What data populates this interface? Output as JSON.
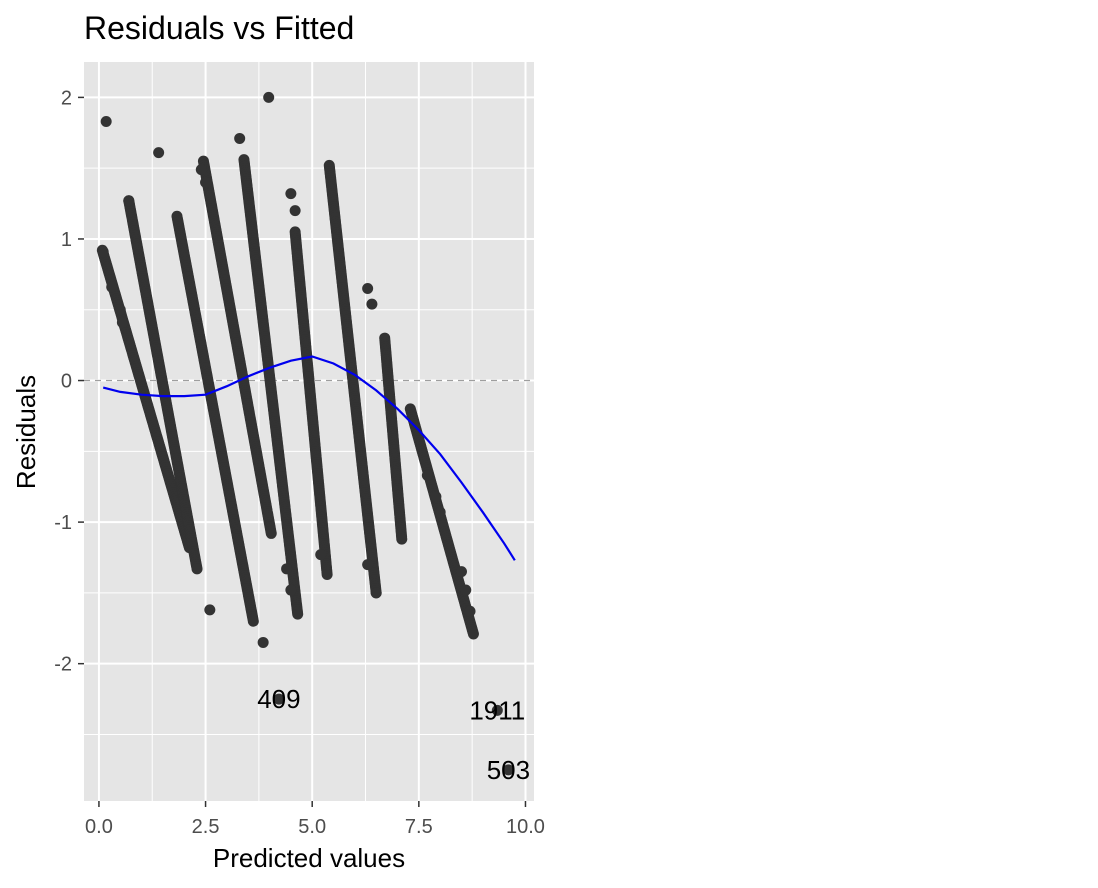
{
  "chart_data": {
    "type": "scatter",
    "title": "Residuals vs Fitted",
    "xlabel": "Predicted values",
    "ylabel": "Residuals",
    "xlim": [
      -0.35,
      10.2
    ],
    "ylim": [
      -2.97,
      2.25
    ],
    "x_ticks": [
      0,
      2.5,
      5,
      7.5,
      10
    ],
    "x_tick_labels": [
      "0.0",
      "2.5",
      "5.0",
      "7.5",
      "10.0"
    ],
    "y_ticks": [
      -2,
      -1,
      0,
      1,
      2
    ],
    "y_tick_labels": [
      "-2",
      "-1",
      "0",
      "1",
      "2"
    ],
    "grid": true,
    "reference_line": {
      "y": 0,
      "style": "dashed",
      "color": "#9e9e9e"
    },
    "colors": {
      "panel": "#e5e5e5",
      "grid": "#ffffff",
      "points": "#333333",
      "smooth": "#0000ee"
    },
    "bands": [
      {
        "x_start": 0.08,
        "y_start": 0.92,
        "x_end": 2.12,
        "y_end": -1.18
      },
      {
        "x_start": 0.7,
        "y_start": 1.27,
        "x_end": 2.3,
        "y_end": -1.33
      },
      {
        "x_start": 1.83,
        "y_start": 1.16,
        "x_end": 3.62,
        "y_end": -1.7
      },
      {
        "x_start": 2.45,
        "y_start": 1.55,
        "x_end": 4.04,
        "y_end": -1.08
      },
      {
        "x_start": 3.4,
        "y_start": 1.56,
        "x_end": 4.66,
        "y_end": -1.65
      },
      {
        "x_start": 4.6,
        "y_start": 1.05,
        "x_end": 5.35,
        "y_end": -1.37
      },
      {
        "x_start": 5.4,
        "y_start": 1.52,
        "x_end": 6.5,
        "y_end": -1.5
      },
      {
        "x_start": 6.7,
        "y_start": 0.3,
        "x_end": 7.1,
        "y_end": -1.12
      },
      {
        "x_start": 7.3,
        "y_start": -0.2,
        "x_end": 8.78,
        "y_end": -1.79
      }
    ],
    "points": [
      [
        0.17,
        1.83
      ],
      [
        1.4,
        1.61
      ],
      [
        3.98,
        2.0
      ],
      [
        3.3,
        1.71
      ],
      [
        0.7,
        1.27
      ],
      [
        4.6,
        1.2
      ],
      [
        4.5,
        1.32
      ],
      [
        2.6,
        -1.62
      ],
      [
        3.85,
        -1.85
      ],
      [
        4.4,
        -1.33
      ],
      [
        4.5,
        -1.48
      ],
      [
        5.2,
        -1.23
      ],
      [
        6.5,
        -1.5
      ],
      [
        6.3,
        -1.3
      ],
      [
        6.4,
        0.54
      ],
      [
        6.3,
        0.65
      ],
      [
        7.7,
        -0.67
      ],
      [
        7.9,
        -0.82
      ],
      [
        8.0,
        -0.93
      ],
      [
        8.5,
        -1.35
      ],
      [
        8.6,
        -1.48
      ],
      [
        8.7,
        -1.63
      ],
      [
        2.4,
        1.49
      ],
      [
        2.5,
        1.4
      ],
      [
        0.1,
        0.91
      ],
      [
        0.3,
        0.66
      ],
      [
        0.5,
        0.5
      ],
      [
        0.55,
        0.41
      ],
      [
        4.22,
        -2.25
      ],
      [
        9.34,
        -2.33
      ],
      [
        9.6,
        -2.75
      ]
    ],
    "smooth": {
      "x": [
        0.1,
        0.5,
        1.0,
        1.5,
        2.0,
        2.5,
        3.0,
        3.5,
        4.0,
        4.5,
        5.0,
        5.5,
        6.0,
        6.5,
        7.0,
        7.5,
        8.0,
        8.5,
        9.0,
        9.5,
        9.75
      ],
      "y": [
        -0.05,
        -0.08,
        -0.1,
        -0.11,
        -0.11,
        -0.1,
        -0.04,
        0.03,
        0.09,
        0.14,
        0.17,
        0.12,
        0.04,
        -0.07,
        -0.2,
        -0.35,
        -0.52,
        -0.72,
        -0.93,
        -1.15,
        -1.27
      ]
    },
    "annotations": [
      {
        "label": "409",
        "x": 4.22,
        "y": -2.25
      },
      {
        "label": "1911",
        "x": 9.34,
        "y": -2.33
      },
      {
        "label": "503",
        "x": 9.6,
        "y": -2.75
      }
    ]
  }
}
